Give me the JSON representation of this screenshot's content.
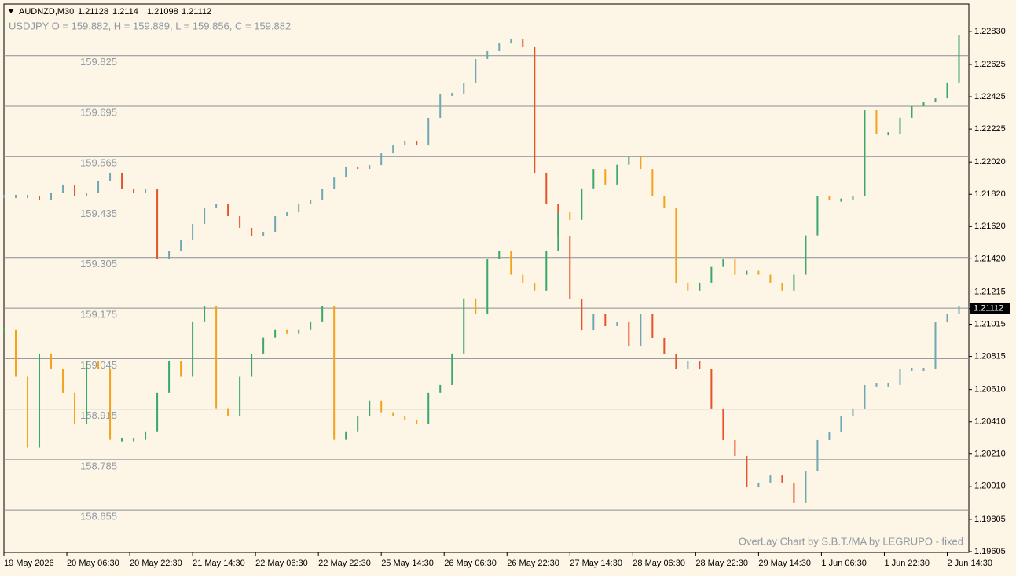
{
  "chart_data": {
    "type": "overlay-bars",
    "symbol": "AUDNZD,M30",
    "ohlc": [
      1.21128,
      1.2114,
      1.21098,
      1.21112
    ],
    "overlay_info": "USDJPY O = 159.882, H = 159.889, L = 159.856, C = 159.882",
    "footer": "OverLay Chart by S.B.T./MA by LEGRUPO - fixed",
    "xlim": [
      0,
      491
    ],
    "xticks": [
      {
        "value": 0,
        "label": "19 May 2026"
      },
      {
        "value": 32,
        "label": "20 May 06:30"
      },
      {
        "value": 64,
        "label": "20 May 22:30"
      },
      {
        "value": 96,
        "label": "21 May 14:30"
      },
      {
        "value": 128,
        "label": "22 May 06:30"
      },
      {
        "value": 160,
        "label": "22 May 22:30"
      },
      {
        "value": 192,
        "label": "25 May 14:30"
      },
      {
        "value": 224,
        "label": "26 May 06:30"
      },
      {
        "value": 256,
        "label": "26 May 22:30"
      },
      {
        "value": 288,
        "label": "27 May 14:30"
      },
      {
        "value": 320,
        "label": "28 May 06:30"
      },
      {
        "value": 352,
        "label": "28 May 22:30"
      },
      {
        "value": 384,
        "label": "29 May 14:30"
      },
      {
        "value": 416,
        "label": "1 Jun 06:30"
      },
      {
        "value": 448,
        "label": "1 Jun 22:30"
      },
      {
        "value": 480,
        "label": "2 Jun 14:30"
      }
    ],
    "x": [
      0,
      6,
      12,
      18,
      24,
      30,
      36,
      42,
      48,
      54,
      60,
      66,
      72,
      78,
      84,
      90,
      96,
      102,
      108,
      114,
      120,
      126,
      132,
      138,
      144,
      150,
      156,
      162,
      168,
      174,
      180,
      186,
      192,
      198,
      204,
      210,
      216,
      222,
      228,
      234,
      240,
      246,
      252,
      258,
      264,
      270,
      276,
      282,
      288,
      294,
      300,
      306,
      312,
      318,
      324,
      330,
      336,
      342,
      348,
      354,
      360,
      366,
      372,
      378,
      384,
      390,
      396,
      402,
      408,
      414,
      420,
      426,
      432,
      438,
      444,
      450,
      456,
      462,
      468,
      474,
      480,
      486
    ],
    "ylim": [
      1.196,
      1.23
    ],
    "yticks": [
      {
        "value": 1.2283,
        "label": "1.22830"
      },
      1.22625,
      1.22425,
      1.22225,
      {
        "value": 1.2202,
        "label": "1.22020"
      },
      {
        "value": 1.2182,
        "label": "1.21820"
      },
      {
        "value": 1.2162,
        "label": "1.21620"
      },
      {
        "value": 1.2142,
        "label": "1.21420"
      },
      1.21215,
      1.21015,
      1.20815,
      {
        "value": 1.2061,
        "label": "1.20610"
      },
      {
        "value": 1.2041,
        "label": "1.20410"
      },
      {
        "value": 1.2021,
        "label": "1.20210"
      },
      {
        "value": 1.2001,
        "label": "1.20010"
      },
      1.19805,
      1.19605
    ],
    "y2lim": [
      158.546,
      159.958
    ],
    "y2ticks": [
      159.825,
      159.695,
      159.565,
      159.435,
      159.305,
      159.175,
      159.045,
      158.915,
      158.785,
      158.655
    ],
    "grid": true,
    "series": [
      {
        "name": "AUDNZD",
        "color": "#6fa8b4",
        "down_color": "#e5532b",
        "values": [
          1.21807,
          1.21807,
          1.21807,
          1.21782,
          1.21831,
          1.2188,
          1.21807,
          1.21831,
          1.21904,
          1.21953,
          1.21855,
          1.21831,
          1.21855,
          1.21417,
          1.21466,
          1.21539,
          1.21636,
          1.21734,
          1.21758,
          1.21685,
          1.21612,
          1.21563,
          1.21587,
          1.21685,
          1.21709,
          1.21758,
          1.21782,
          1.21855,
          1.21928,
          1.21992,
          1.21977,
          1.22001,
          1.22074,
          1.22123,
          1.22148,
          1.22123,
          1.22294,
          1.2244,
          1.2244,
          1.22513,
          1.22659,
          1.22708,
          1.22756,
          1.22781,
          1.22732,
          1.21953,
          1.21758,
          1.21563,
          1.21173,
          1.20978,
          1.21076,
          1.21003,
          1.21027,
          1.20881,
          1.21076,
          1.2093,
          1.20832,
          1.20735,
          1.20784,
          1.20735,
          1.20492,
          1.20297,
          1.20199,
          1.20004,
          1.20029,
          1.20077,
          1.20029,
          1.19907,
          1.20102,
          1.20297,
          1.20345,
          1.20443,
          1.20492,
          1.20638,
          1.20638,
          1.20638,
          1.20735,
          1.20735,
          1.20735,
          1.21027,
          1.21076,
          1.21125
        ]
      },
      {
        "name": "USDJPY",
        "axis": "y2",
        "color": "#3aa86b",
        "down_color": "#f2a31b",
        "values": [
          159.119,
          158.998,
          158.816,
          159.058,
          159.018,
          158.957,
          158.876,
          159.038,
          159.018,
          158.836,
          158.836,
          158.836,
          158.856,
          158.957,
          159.038,
          158.998,
          159.139,
          159.18,
          158.917,
          158.897,
          158.998,
          159.058,
          159.099,
          159.119,
          159.109,
          159.119,
          159.139,
          159.18,
          158.836,
          158.856,
          158.897,
          158.937,
          158.907,
          158.897,
          158.886,
          158.876,
          158.957,
          158.977,
          159.058,
          159.2,
          159.159,
          159.301,
          159.321,
          159.261,
          159.24,
          159.22,
          159.321,
          159.422,
          159.402,
          159.483,
          159.533,
          159.493,
          159.544,
          159.564,
          159.533,
          159.463,
          159.432,
          159.24,
          159.22,
          159.24,
          159.281,
          159.301,
          159.261,
          159.271,
          159.261,
          159.24,
          159.22,
          159.261,
          159.362,
          159.463,
          159.453,
          159.453,
          159.463,
          159.685,
          159.624,
          159.624,
          159.665,
          159.695,
          159.705,
          159.715,
          159.756,
          159.877
        ]
      }
    ]
  }
}
